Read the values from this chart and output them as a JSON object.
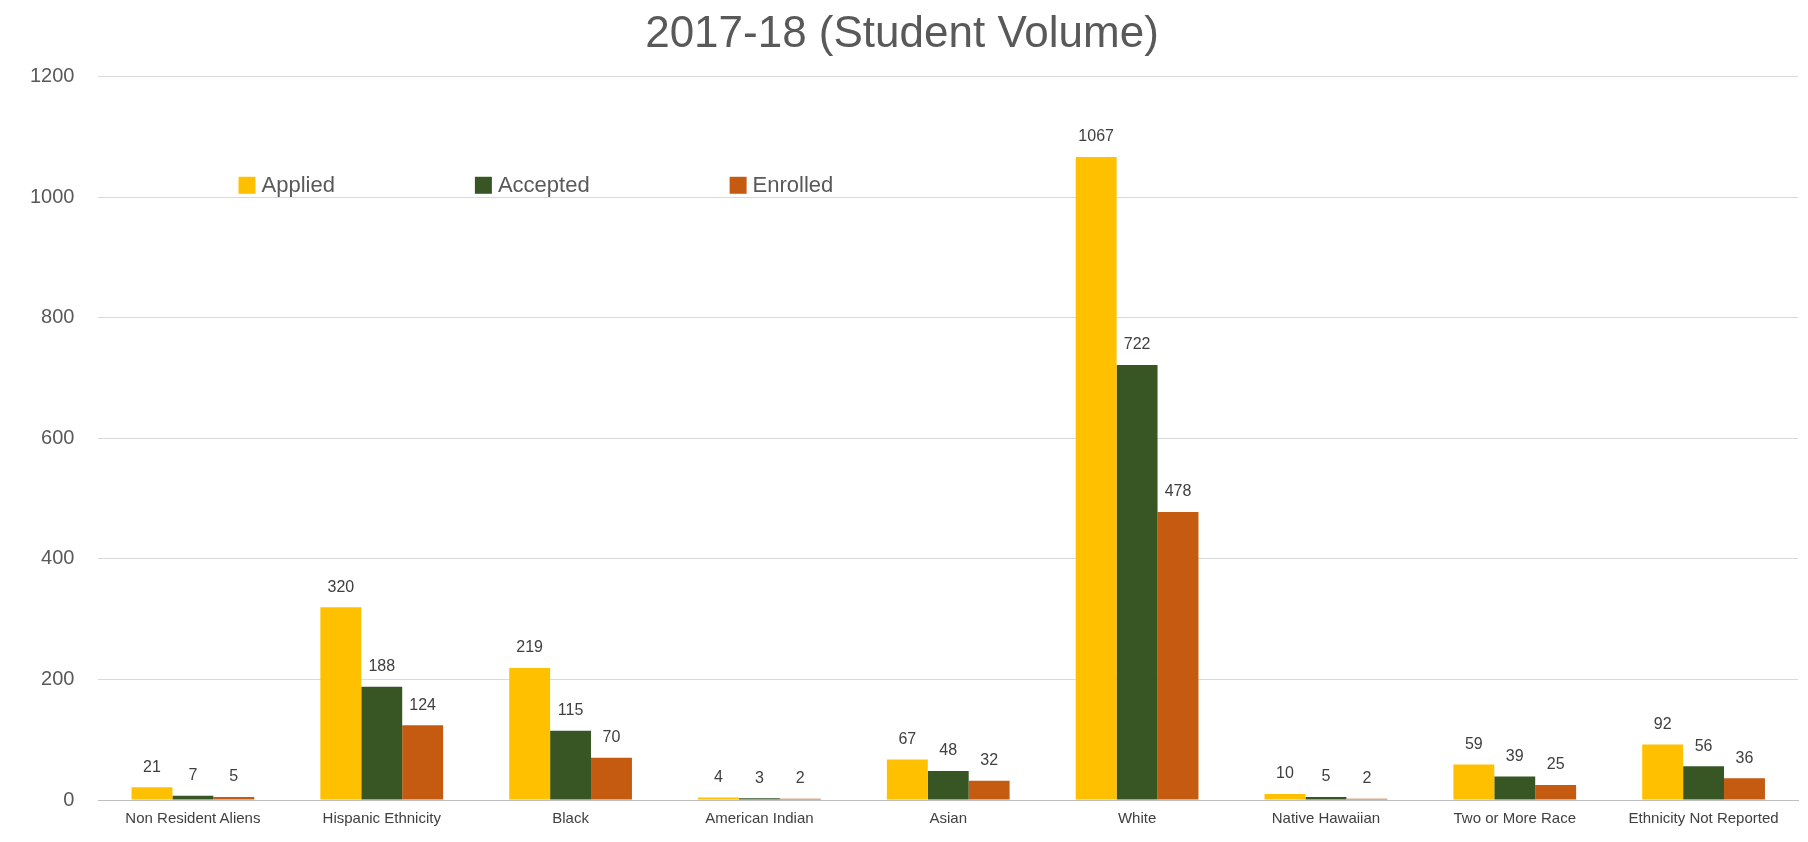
{
  "chart_data": {
    "type": "bar",
    "title": "2017-18 (Student Volume)",
    "categories": [
      "Non Resident Aliens",
      "Hispanic Ethnicity",
      "Black",
      "American Indian",
      "Asian",
      "White",
      "Native Hawaiian",
      "Two or More Race",
      "Ethnicity Not Reported"
    ],
    "series": [
      {
        "name": "Applied",
        "color": "#ffc000",
        "values": [
          21,
          320,
          219,
          4,
          67,
          1067,
          10,
          59,
          92
        ]
      },
      {
        "name": "Accepted",
        "color": "#375623",
        "values": [
          7,
          188,
          115,
          3,
          48,
          722,
          5,
          39,
          56
        ]
      },
      {
        "name": "Enrolled",
        "color": "#c55a11",
        "values": [
          5,
          124,
          70,
          2,
          32,
          478,
          2,
          25,
          36
        ]
      }
    ],
    "ylim": [
      0,
      1200
    ],
    "yticks": [
      0,
      200,
      400,
      600,
      800,
      1000,
      1200
    ],
    "grid": "y",
    "legend": "top left",
    "data_labels": true
  }
}
